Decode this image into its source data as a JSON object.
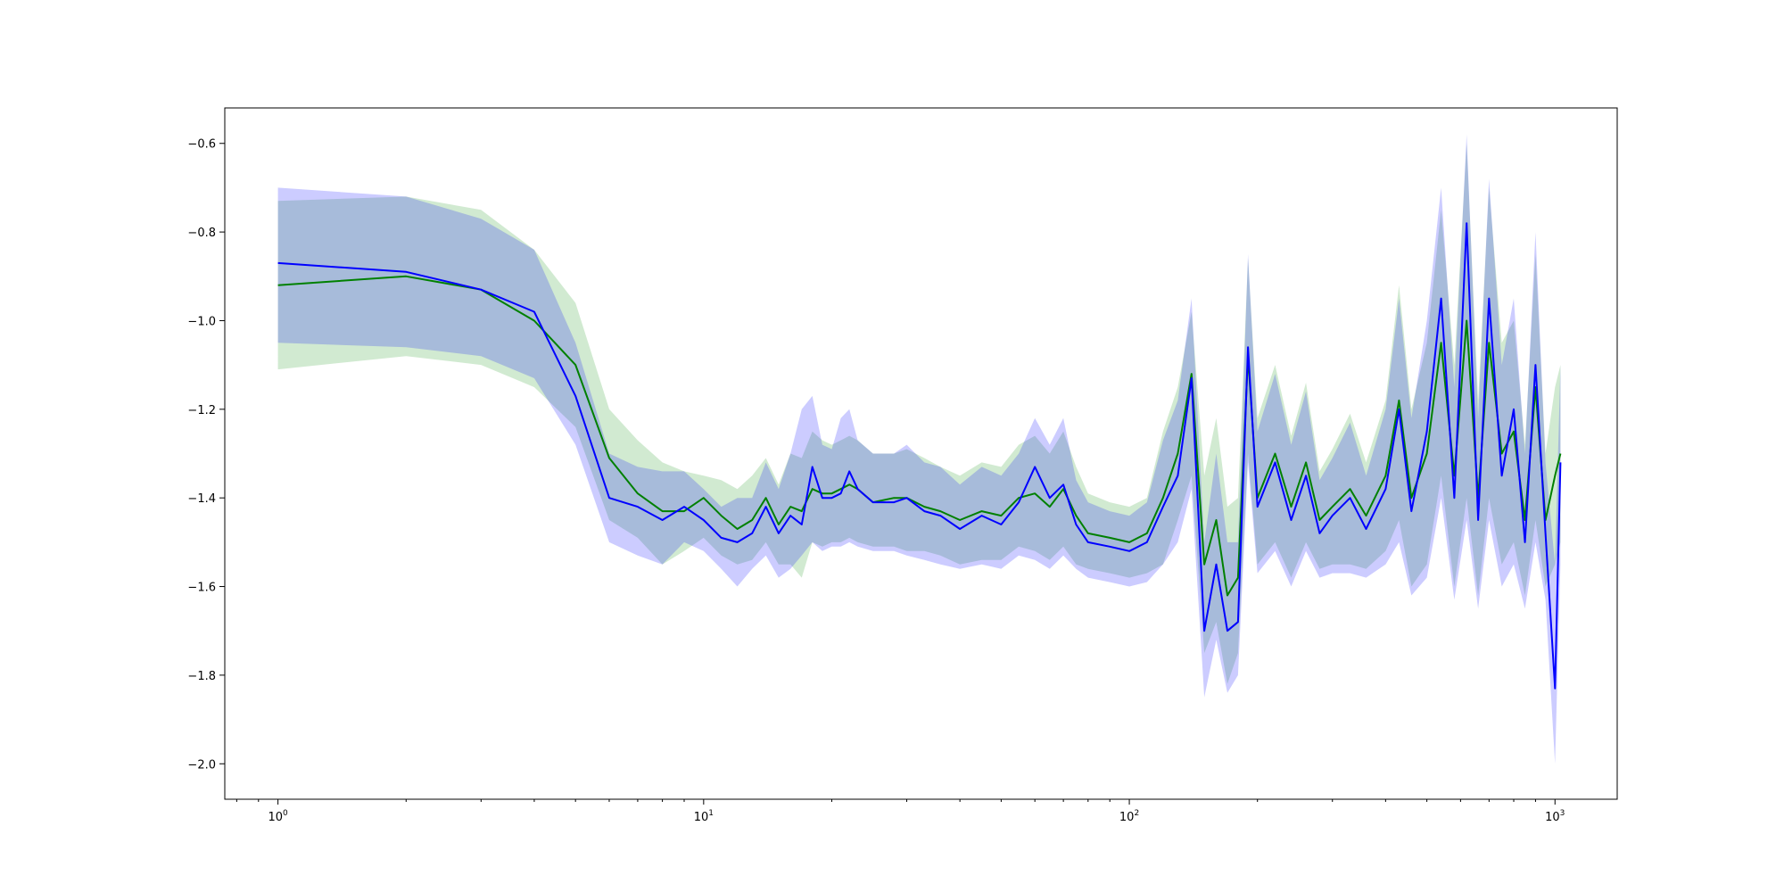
{
  "chart_data": {
    "type": "line",
    "title": "",
    "xlabel": "",
    "ylabel": "",
    "x_scale": "log",
    "xlim": [
      0.75,
      1400
    ],
    "ylim": [
      -2.08,
      -0.52
    ],
    "grid": false,
    "legend": "none",
    "x_ticks": [
      {
        "value": 1,
        "base": "10",
        "exp": "0"
      },
      {
        "value": 10,
        "base": "10",
        "exp": "1"
      },
      {
        "value": 100,
        "base": "10",
        "exp": "2"
      },
      {
        "value": 1000,
        "base": "10",
        "exp": "3"
      }
    ],
    "y_ticks": [
      {
        "value": -0.6,
        "label": "−0.6"
      },
      {
        "value": -0.8,
        "label": "−0.8"
      },
      {
        "value": -1.0,
        "label": "−1.0"
      },
      {
        "value": -1.2,
        "label": "−1.2"
      },
      {
        "value": -1.4,
        "label": "−1.4"
      },
      {
        "value": -1.6,
        "label": "−1.6"
      },
      {
        "value": -1.8,
        "label": "−1.8"
      },
      {
        "value": -2.0,
        "label": "−2.0"
      }
    ],
    "series": [
      {
        "color": "#008000",
        "band_color": "#2ca02c",
        "band_opacity": 0.22,
        "x": [
          1,
          2,
          3,
          4,
          5,
          6,
          7,
          8,
          9,
          10,
          11,
          12,
          13,
          14,
          15,
          16,
          17,
          18,
          19,
          20,
          21,
          22,
          23,
          25,
          28,
          30,
          33,
          36,
          40,
          45,
          50,
          55,
          60,
          65,
          70,
          75,
          80,
          90,
          100,
          110,
          120,
          130,
          140,
          150,
          160,
          170,
          180,
          190,
          200,
          220,
          240,
          260,
          280,
          300,
          330,
          360,
          400,
          430,
          460,
          500,
          540,
          580,
          620,
          660,
          700,
          750,
          800,
          850,
          900,
          950,
          1000,
          1030
        ],
        "y": [
          -0.92,
          -0.9,
          -0.93,
          -1.0,
          -1.1,
          -1.31,
          -1.39,
          -1.43,
          -1.43,
          -1.4,
          -1.44,
          -1.47,
          -1.45,
          -1.4,
          -1.46,
          -1.42,
          -1.43,
          -1.38,
          -1.39,
          -1.39,
          -1.38,
          -1.37,
          -1.38,
          -1.41,
          -1.4,
          -1.4,
          -1.42,
          -1.43,
          -1.45,
          -1.43,
          -1.44,
          -1.4,
          -1.39,
          -1.42,
          -1.38,
          -1.44,
          -1.48,
          -1.49,
          -1.5,
          -1.48,
          -1.4,
          -1.3,
          -1.12,
          -1.55,
          -1.45,
          -1.62,
          -1.58,
          -1.08,
          -1.4,
          -1.3,
          -1.42,
          -1.32,
          -1.45,
          -1.42,
          -1.38,
          -1.44,
          -1.35,
          -1.18,
          -1.4,
          -1.3,
          -1.05,
          -1.35,
          -1.0,
          -1.4,
          -1.05,
          -1.3,
          -1.25,
          -1.45,
          -1.15,
          -1.45,
          -1.35,
          -1.3
        ],
        "lower": [
          -1.11,
          -1.08,
          -1.1,
          -1.15,
          -1.24,
          -1.45,
          -1.49,
          -1.55,
          -1.52,
          -1.49,
          -1.53,
          -1.55,
          -1.54,
          -1.5,
          -1.55,
          -1.55,
          -1.58,
          -1.5,
          -1.51,
          -1.5,
          -1.5,
          -1.49,
          -1.5,
          -1.51,
          -1.51,
          -1.52,
          -1.52,
          -1.53,
          -1.55,
          -1.54,
          -1.54,
          -1.51,
          -1.52,
          -1.54,
          -1.51,
          -1.55,
          -1.56,
          -1.57,
          -1.58,
          -1.57,
          -1.55,
          -1.45,
          -1.35,
          -1.75,
          -1.68,
          -1.82,
          -1.75,
          -1.3,
          -1.55,
          -1.5,
          -1.58,
          -1.5,
          -1.56,
          -1.55,
          -1.55,
          -1.56,
          -1.52,
          -1.45,
          -1.6,
          -1.55,
          -1.35,
          -1.6,
          -1.4,
          -1.62,
          -1.4,
          -1.55,
          -1.5,
          -1.62,
          -1.45,
          -1.6,
          -1.55,
          -1.5
        ],
        "upper": [
          -0.73,
          -0.72,
          -0.75,
          -0.84,
          -0.96,
          -1.2,
          -1.27,
          -1.32,
          -1.34,
          -1.35,
          -1.36,
          -1.38,
          -1.35,
          -1.31,
          -1.37,
          -1.3,
          -1.31,
          -1.25,
          -1.27,
          -1.28,
          -1.27,
          -1.26,
          -1.27,
          -1.3,
          -1.3,
          -1.29,
          -1.31,
          -1.33,
          -1.35,
          -1.32,
          -1.33,
          -1.28,
          -1.26,
          -1.3,
          -1.25,
          -1.33,
          -1.39,
          -1.41,
          -1.42,
          -1.4,
          -1.25,
          -1.15,
          -0.98,
          -1.35,
          -1.22,
          -1.42,
          -1.4,
          -0.86,
          -1.22,
          -1.1,
          -1.26,
          -1.14,
          -1.34,
          -1.29,
          -1.21,
          -1.32,
          -1.18,
          -0.92,
          -1.2,
          -1.05,
          -0.75,
          -1.1,
          -0.6,
          -1.18,
          -0.7,
          -1.05,
          -1.0,
          -1.28,
          -0.85,
          -1.3,
          -1.15,
          -1.1
        ]
      },
      {
        "color": "#0000ff",
        "band_color": "#0000ff",
        "band_opacity": 0.2,
        "x": [
          1,
          2,
          3,
          4,
          5,
          6,
          7,
          8,
          9,
          10,
          11,
          12,
          13,
          14,
          15,
          16,
          17,
          18,
          19,
          20,
          21,
          22,
          23,
          25,
          28,
          30,
          33,
          36,
          40,
          45,
          50,
          55,
          60,
          65,
          70,
          75,
          80,
          90,
          100,
          110,
          120,
          130,
          140,
          150,
          160,
          170,
          180,
          190,
          200,
          220,
          240,
          260,
          280,
          300,
          330,
          360,
          400,
          430,
          460,
          500,
          540,
          580,
          620,
          660,
          700,
          750,
          800,
          850,
          900,
          950,
          1000,
          1030
        ],
        "y": [
          -0.87,
          -0.89,
          -0.93,
          -0.98,
          -1.17,
          -1.4,
          -1.42,
          -1.45,
          -1.42,
          -1.45,
          -1.49,
          -1.5,
          -1.48,
          -1.42,
          -1.48,
          -1.44,
          -1.46,
          -1.33,
          -1.4,
          -1.4,
          -1.39,
          -1.34,
          -1.38,
          -1.41,
          -1.41,
          -1.4,
          -1.43,
          -1.44,
          -1.47,
          -1.44,
          -1.46,
          -1.41,
          -1.33,
          -1.4,
          -1.37,
          -1.46,
          -1.5,
          -1.51,
          -1.52,
          -1.5,
          -1.42,
          -1.35,
          -1.13,
          -1.7,
          -1.55,
          -1.7,
          -1.68,
          -1.06,
          -1.42,
          -1.32,
          -1.45,
          -1.35,
          -1.48,
          -1.44,
          -1.4,
          -1.47,
          -1.38,
          -1.2,
          -1.43,
          -1.25,
          -0.95,
          -1.4,
          -0.78,
          -1.45,
          -0.95,
          -1.35,
          -1.2,
          -1.5,
          -1.1,
          -1.48,
          -1.83,
          -1.32
        ],
        "lower": [
          -1.05,
          -1.06,
          -1.08,
          -1.13,
          -1.28,
          -1.5,
          -1.53,
          -1.55,
          -1.5,
          -1.52,
          -1.56,
          -1.6,
          -1.56,
          -1.53,
          -1.58,
          -1.56,
          -1.53,
          -1.5,
          -1.52,
          -1.51,
          -1.51,
          -1.5,
          -1.51,
          -1.52,
          -1.52,
          -1.53,
          -1.54,
          -1.55,
          -1.56,
          -1.55,
          -1.56,
          -1.53,
          -1.54,
          -1.56,
          -1.53,
          -1.56,
          -1.58,
          -1.59,
          -1.6,
          -1.59,
          -1.55,
          -1.5,
          -1.38,
          -1.85,
          -1.72,
          -1.84,
          -1.8,
          -1.32,
          -1.57,
          -1.52,
          -1.6,
          -1.52,
          -1.58,
          -1.57,
          -1.57,
          -1.58,
          -1.55,
          -1.5,
          -1.62,
          -1.58,
          -1.4,
          -1.63,
          -1.45,
          -1.65,
          -1.45,
          -1.6,
          -1.55,
          -1.65,
          -1.5,
          -1.63,
          -2.0,
          -1.55
        ],
        "upper": [
          -0.7,
          -0.72,
          -0.77,
          -0.84,
          -1.05,
          -1.3,
          -1.33,
          -1.34,
          -1.34,
          -1.38,
          -1.42,
          -1.4,
          -1.4,
          -1.32,
          -1.38,
          -1.3,
          -1.2,
          -1.17,
          -1.28,
          -1.29,
          -1.22,
          -1.2,
          -1.27,
          -1.3,
          -1.3,
          -1.28,
          -1.32,
          -1.33,
          -1.37,
          -1.33,
          -1.35,
          -1.3,
          -1.22,
          -1.28,
          -1.22,
          -1.36,
          -1.41,
          -1.43,
          -1.44,
          -1.41,
          -1.27,
          -1.18,
          -0.95,
          -1.5,
          -1.3,
          -1.5,
          -1.5,
          -0.85,
          -1.25,
          -1.12,
          -1.28,
          -1.16,
          -1.36,
          -1.31,
          -1.23,
          -1.35,
          -1.2,
          -0.95,
          -1.22,
          -1.0,
          -0.7,
          -1.15,
          -0.58,
          -1.22,
          -0.68,
          -1.1,
          -0.95,
          -1.3,
          -0.8,
          -1.32,
          -1.55,
          -1.1
        ]
      }
    ]
  }
}
